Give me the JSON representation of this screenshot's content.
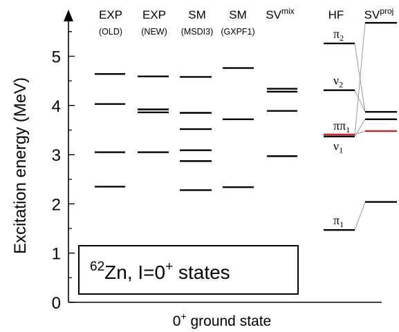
{
  "chart_data": {
    "type": "level-scheme",
    "ylabel": "Excitation energy (MeV)",
    "xlabel": "0",
    "xlabel_sup": "+",
    "xlabel_rest": " ground state",
    "ylim": [
      0,
      6
    ],
    "yticks": [
      "0",
      "1",
      "2",
      "3",
      "4",
      "5"
    ],
    "box_label": {
      "mass": "62",
      "element": "Zn, I=0",
      "sup": "+",
      "rest": " states"
    },
    "columns": [
      {
        "name": "EXP",
        "sub": "(OLD)",
        "levels": [
          2.35,
          3.05,
          4.03,
          4.64
        ]
      },
      {
        "name": "EXP",
        "sub": "(NEW)",
        "levels": [
          3.05,
          3.86,
          3.92,
          4.59
        ]
      },
      {
        "name": "SM",
        "sub": "(MSDI3)",
        "levels": [
          2.28,
          2.87,
          3.09,
          3.52,
          3.85,
          4.58
        ]
      },
      {
        "name": "SM",
        "sub": "(GXPF1)",
        "levels": [
          2.34,
          3.72,
          4.76
        ]
      },
      {
        "name": "SV",
        "sup": "mix",
        "levels": [
          2.97,
          3.89,
          4.28,
          4.34
        ]
      },
      {
        "name": "HF",
        "levels": [
          {
            "value": 1.47,
            "label": "π",
            "sub": "1"
          },
          {
            "value": 3.37,
            "label": "ν",
            "sub": "1"
          },
          {
            "value": 3.41,
            "label": "ππ",
            "sub": "1",
            "color": "#d62728"
          },
          {
            "value": 4.31,
            "label": "ν",
            "sub": "2"
          },
          {
            "value": 5.26,
            "label": "π",
            "sub": "2"
          }
        ]
      },
      {
        "name": "SV",
        "sup": "proj",
        "levels": [
          {
            "value": 2.04
          },
          {
            "value": 3.48,
            "color": "#d62728"
          },
          {
            "value": 3.72
          },
          {
            "value": 3.87
          },
          {
            "value": 5.68
          }
        ]
      }
    ],
    "connections": [
      [
        1.47,
        2.04
      ],
      [
        3.41,
        3.48
      ],
      [
        3.37,
        3.72
      ],
      [
        4.31,
        3.87
      ],
      [
        5.26,
        3.87
      ],
      [
        3.37,
        5.68
      ]
    ],
    "colors": {
      "level": "#000000",
      "highlight": "#d62728",
      "connector": "#999999"
    }
  }
}
